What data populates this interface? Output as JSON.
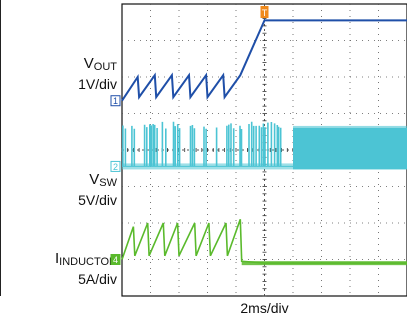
{
  "labels": {
    "vout_name": "V",
    "vout_sub": "OUT",
    "vout_scale": "1V/div",
    "vsw_name": "V",
    "vsw_sub": "SW",
    "vsw_scale": "5V/div",
    "iind_name": "I",
    "iind_sub": "INDUCTOR",
    "iind_scale": "5A/div",
    "timebase": "2ms/div"
  },
  "markers": {
    "trigger": "T",
    "ch1": "1",
    "ch2": "2",
    "ch4": "4"
  },
  "colors": {
    "vout": "#1f4fa8",
    "vsw": "#4cc4d4",
    "iind": "#5aba2c",
    "trigger": "#f08a1c",
    "grid": "#555555"
  },
  "chart_data": {
    "type": "line",
    "x_divisions": 10,
    "y_divisions": 8,
    "grid": true,
    "trigger_x_div": 5.0,
    "series": [
      {
        "name": "VOUT",
        "scale": "1V/div",
        "description_points_div": [
          [
            0.0,
            5.35
          ],
          [
            0.55,
            6.0
          ],
          [
            0.6,
            5.45
          ],
          [
            1.15,
            6.05
          ],
          [
            1.2,
            5.45
          ],
          [
            1.75,
            6.05
          ],
          [
            1.8,
            5.45
          ],
          [
            2.35,
            6.05
          ],
          [
            2.4,
            5.45
          ],
          [
            2.95,
            6.05
          ],
          [
            3.0,
            5.45
          ],
          [
            3.55,
            6.05
          ],
          [
            3.6,
            5.45
          ],
          [
            4.15,
            6.05
          ],
          [
            5.0,
            7.55
          ],
          [
            5.9,
            7.55
          ],
          [
            10.0,
            7.55
          ]
        ]
      },
      {
        "name": "VSW",
        "scale": "5V/div",
        "burst_high_div": 4.55,
        "burst_low_div": 3.55,
        "switching_start_div": 0.0,
        "switching_gap_start_div": 5.6,
        "switching_resume_div": 6.0
      },
      {
        "name": "IINDUCTOR",
        "scale": "5A/div",
        "description_points_div": [
          [
            0.0,
            1.0
          ],
          [
            0.4,
            1.9
          ],
          [
            0.45,
            1.1
          ],
          [
            0.9,
            2.0
          ],
          [
            0.95,
            1.1
          ],
          [
            1.45,
            2.0
          ],
          [
            1.5,
            1.1
          ],
          [
            1.95,
            2.0
          ],
          [
            2.0,
            1.1
          ],
          [
            2.55,
            2.0
          ],
          [
            2.6,
            1.1
          ],
          [
            3.05,
            2.0
          ],
          [
            3.1,
            1.1
          ],
          [
            3.65,
            2.0
          ],
          [
            3.7,
            1.1
          ],
          [
            4.15,
            2.1
          ],
          [
            4.2,
            0.95
          ],
          [
            5.0,
            0.9
          ],
          [
            10.0,
            0.9
          ]
        ]
      }
    ]
  }
}
